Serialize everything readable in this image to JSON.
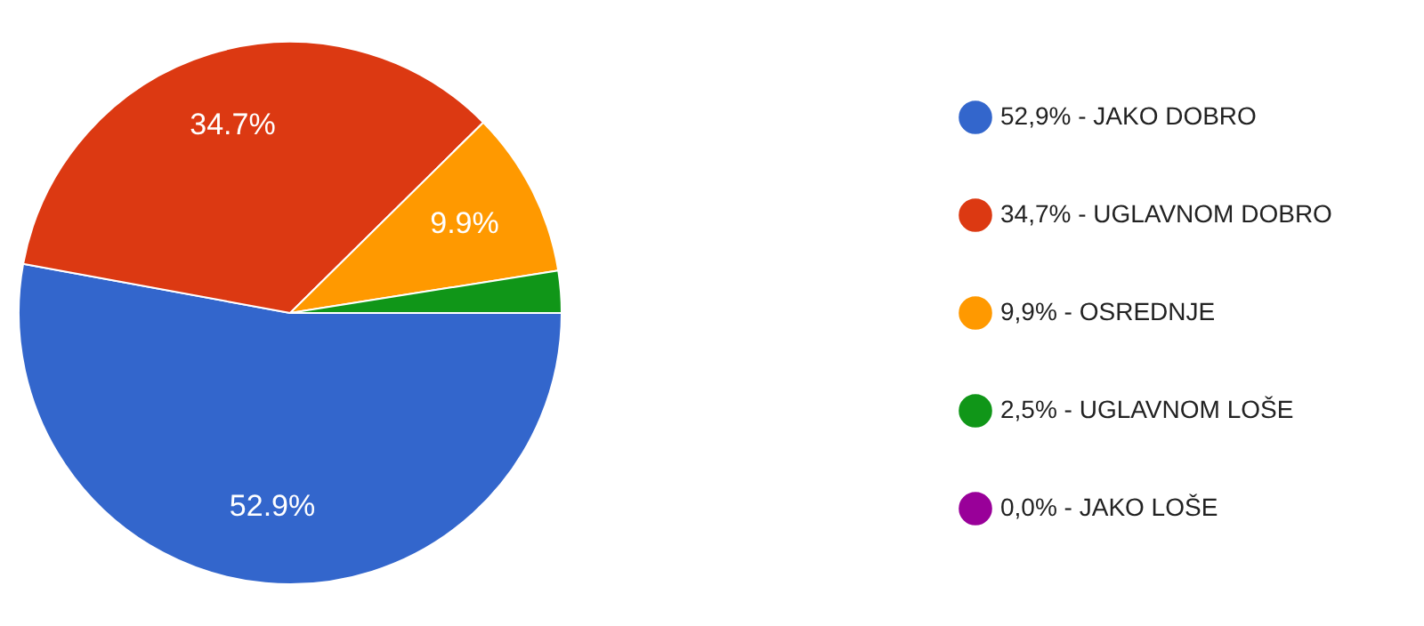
{
  "chart_data": {
    "type": "pie",
    "categories": [
      "52,9% - JAKO DOBRO",
      "34,7% - UGLAVNOM DOBRO",
      "9,9% - OSREDNJE",
      "2,5% - UGLAVNOM LOŠE",
      "0,0% - JAKO LOŠE"
    ],
    "values": [
      52.9,
      34.7,
      9.9,
      2.5,
      0.0
    ],
    "colors": [
      "#3366cc",
      "#dc3912",
      "#ff9900",
      "#109618",
      "#990099"
    ],
    "value_labels": [
      "52.9%",
      "34.7%",
      "9.9%",
      null,
      null
    ],
    "legend": "right"
  }
}
